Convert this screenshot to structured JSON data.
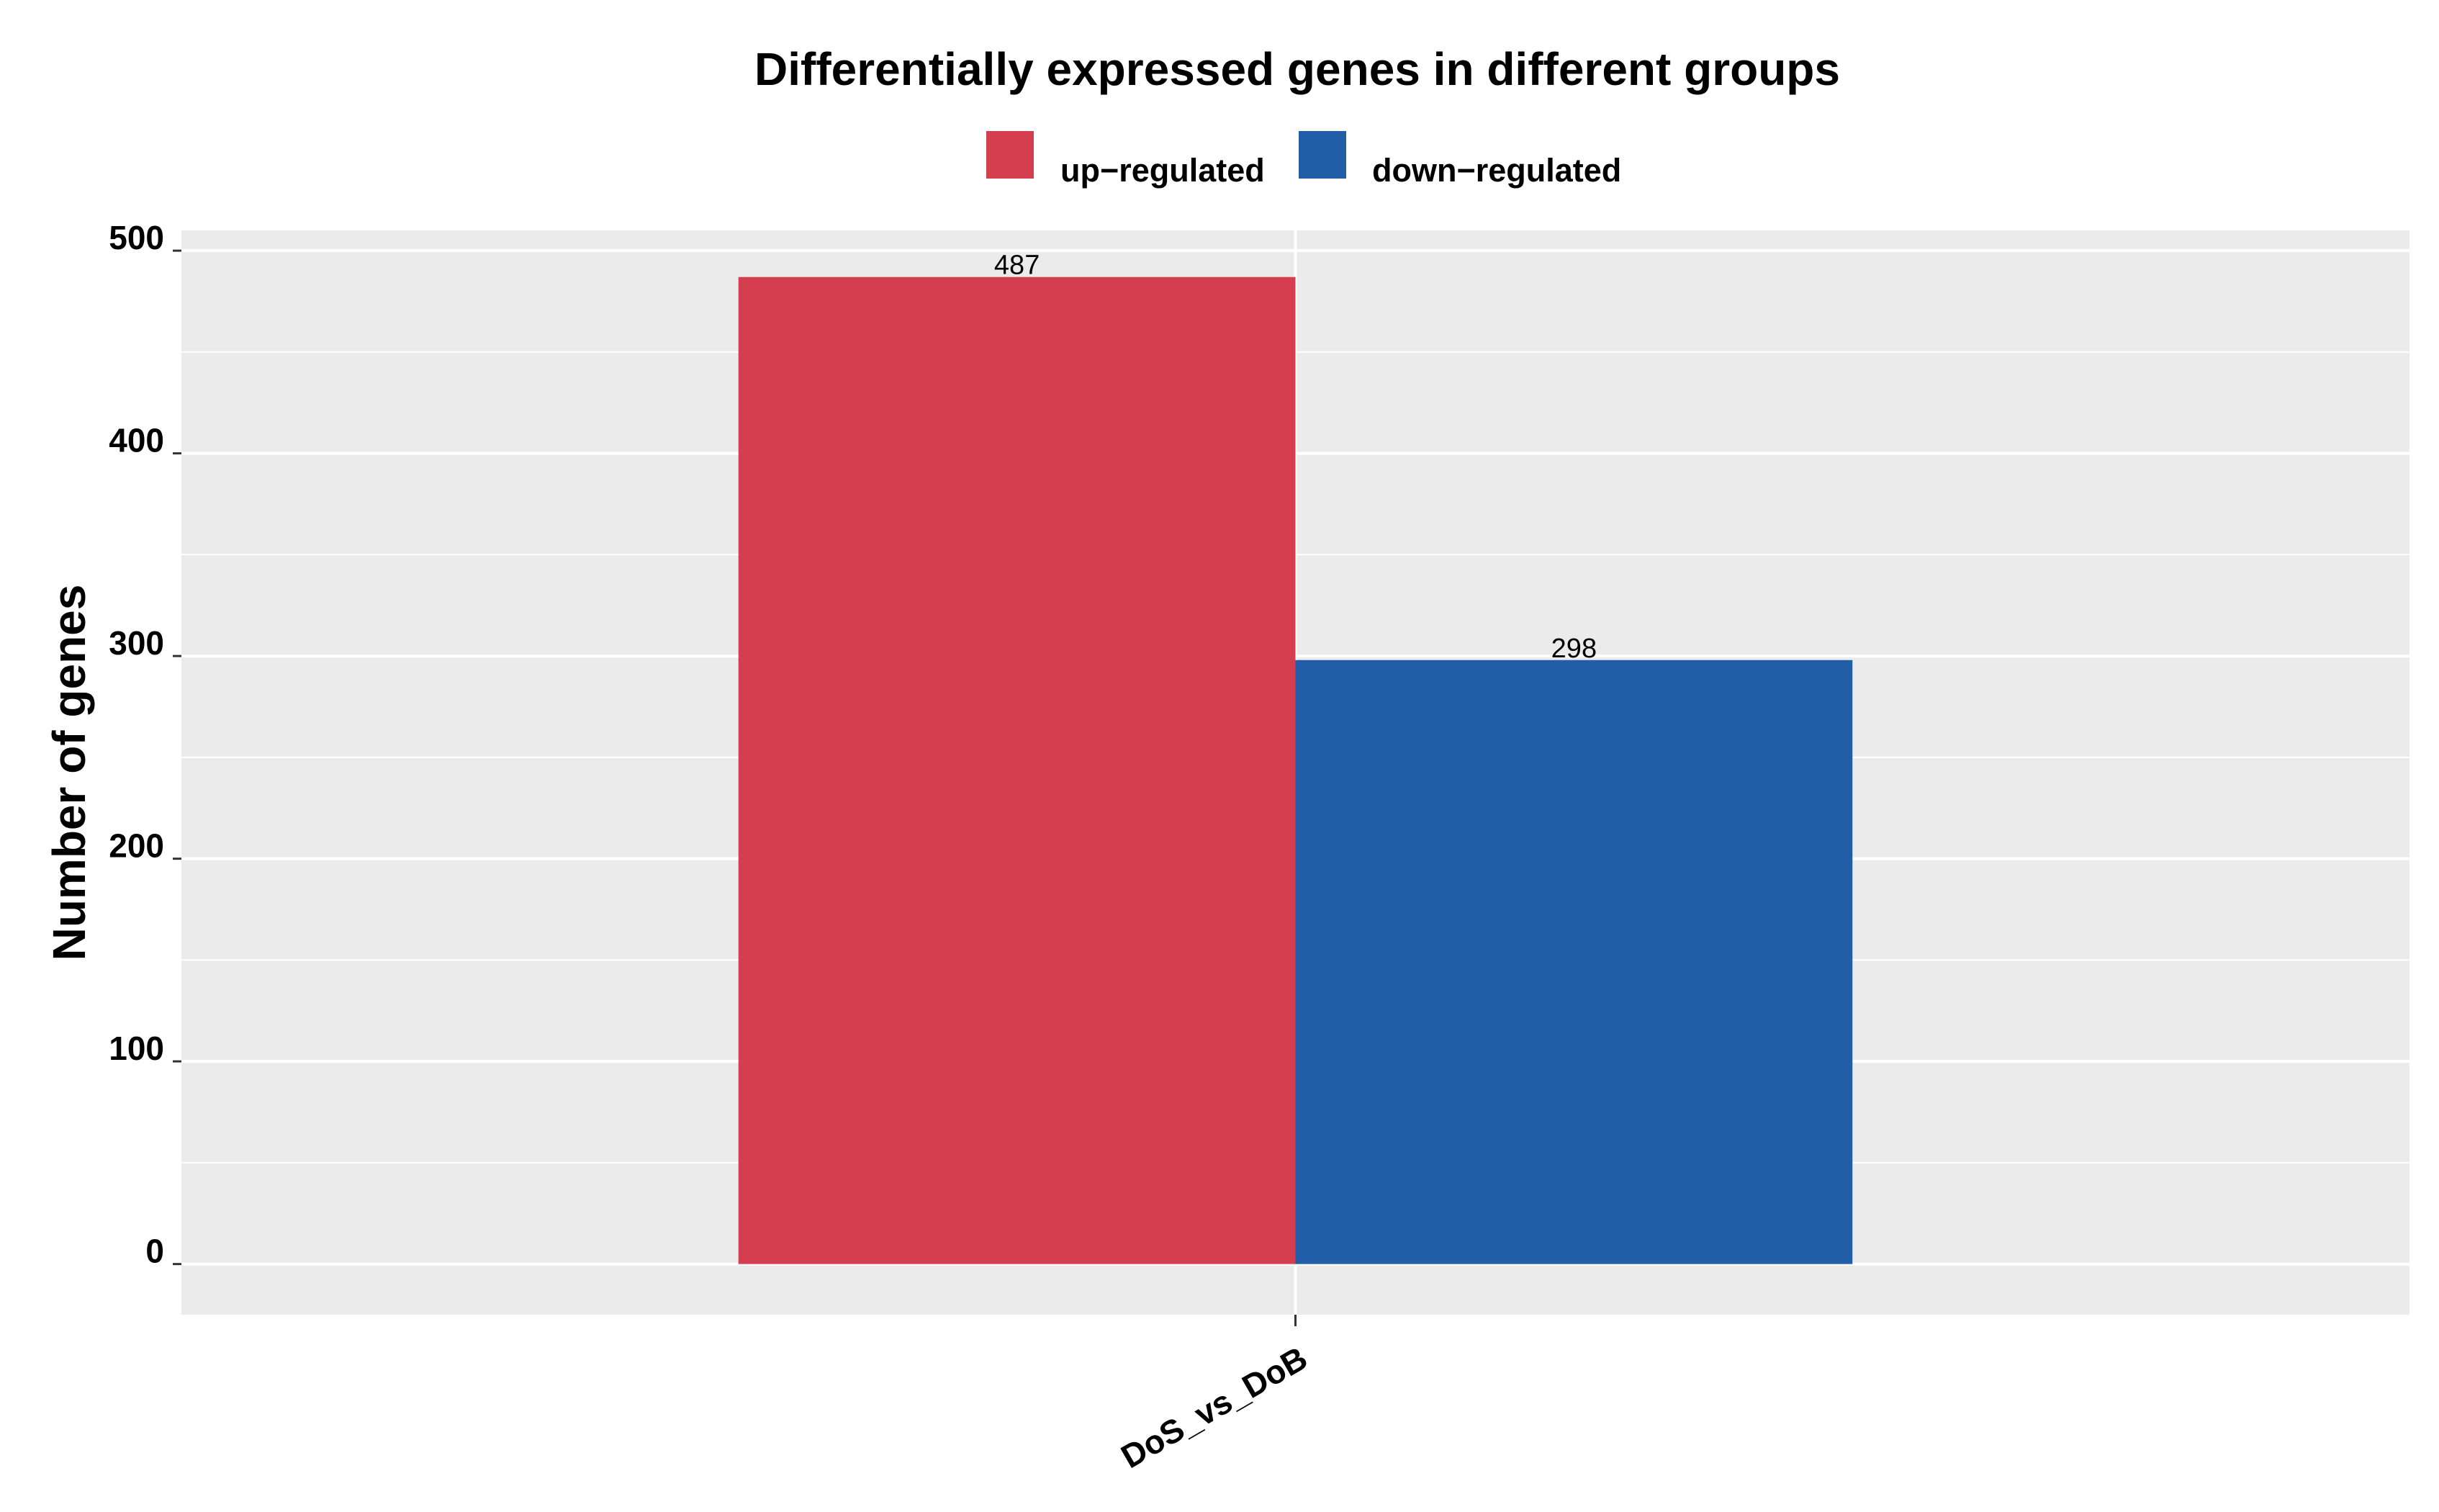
{
  "chart_data": {
    "type": "bar",
    "title": "Differentially expressed genes in different groups",
    "xlabel": "",
    "ylabel": "Number of genes",
    "categories": [
      "DoS_vs_DoB"
    ],
    "series": [
      {
        "name": "up−regulated",
        "values": [
          487
        ],
        "color": "#d53e4f"
      },
      {
        "name": "down−regulated",
        "values": [
          298
        ],
        "color": "#225ea8"
      }
    ],
    "data_labels": [
      "487",
      "298"
    ],
    "ylim": [
      -25,
      510
    ],
    "yticks": [
      0,
      100,
      200,
      300,
      400,
      500
    ],
    "ytick_labels": [
      "0",
      "100",
      "200",
      "300",
      "400",
      "500"
    ],
    "grid": true,
    "legend_position": "top",
    "panel_background": "#ebebeb",
    "grid_color": "#ffffff"
  }
}
